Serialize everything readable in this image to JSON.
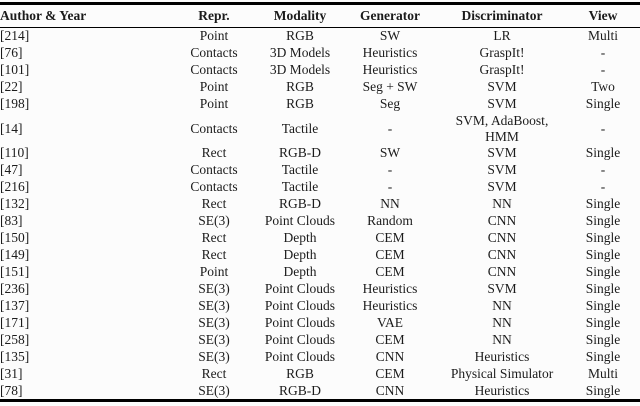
{
  "colors": {
    "background": "#fcfcfc",
    "text": "#1b1b1b",
    "rule": "#000000"
  },
  "table": {
    "columns": [
      {
        "key": "author",
        "label": "Author & Year",
        "align": "left"
      },
      {
        "key": "repr",
        "label": "Repr.",
        "align": "center"
      },
      {
        "key": "modality",
        "label": "Modality",
        "align": "center"
      },
      {
        "key": "generator",
        "label": "Generator",
        "align": "center"
      },
      {
        "key": "discriminator",
        "label": "Discriminator",
        "align": "center"
      },
      {
        "key": "view",
        "label": "View",
        "align": "center"
      }
    ],
    "rows": [
      {
        "author": "[214]",
        "repr": "Point",
        "modality": "RGB",
        "generator": "SW",
        "discriminator": "LR",
        "view": "Multi"
      },
      {
        "author": "[76]",
        "repr": "Contacts",
        "modality": "3D Models",
        "generator": "Heuristics",
        "discriminator": "GraspIt!",
        "view": "-"
      },
      {
        "author": "[101]",
        "repr": "Contacts",
        "modality": "3D Models",
        "generator": "Heuristics",
        "discriminator": "GraspIt!",
        "view": "-"
      },
      {
        "author": "[22]",
        "repr": "Point",
        "modality": "RGB",
        "generator": "Seg + SW",
        "discriminator": "SVM",
        "view": "Two"
      },
      {
        "author": "[198]",
        "repr": "Point",
        "modality": "RGB",
        "generator": "Seg",
        "discriminator": "SVM",
        "view": "Single"
      },
      {
        "author": "[14]",
        "repr": "Contacts",
        "modality": "Tactile",
        "generator": "-",
        "discriminator": "SVM, AdaBoost,\nHMM",
        "view": "-"
      },
      {
        "author": "[110]",
        "repr": "Rect",
        "modality": "RGB-D",
        "generator": "SW",
        "discriminator": "SVM",
        "view": "Single"
      },
      {
        "author": "[47]",
        "repr": "Contacts",
        "modality": "Tactile",
        "generator": "-",
        "discriminator": "SVM",
        "view": "-"
      },
      {
        "author": "[216]",
        "repr": "Contacts",
        "modality": "Tactile",
        "generator": "-",
        "discriminator": "SVM",
        "view": "-"
      },
      {
        "author": "[132]",
        "repr": "Rect",
        "modality": "RGB-D",
        "generator": "NN",
        "discriminator": "NN",
        "view": "Single"
      },
      {
        "author": "[83]",
        "repr": "SE(3)",
        "modality": "Point Clouds",
        "generator": "Random",
        "discriminator": "CNN",
        "view": "Single"
      },
      {
        "author": "[150]",
        "repr": "Rect",
        "modality": "Depth",
        "generator": "CEM",
        "discriminator": "CNN",
        "view": "Single"
      },
      {
        "author": "[149]",
        "repr": "Rect",
        "modality": "Depth",
        "generator": "CEM",
        "discriminator": "CNN",
        "view": "Single"
      },
      {
        "author": "[151]",
        "repr": "Point",
        "modality": "Depth",
        "generator": "CEM",
        "discriminator": "CNN",
        "view": "Single"
      },
      {
        "author": "[236]",
        "repr": "SE(3)",
        "modality": "Point Clouds",
        "generator": "Heuristics",
        "discriminator": "SVM",
        "view": "Single"
      },
      {
        "author": "[137]",
        "repr": "SE(3)",
        "modality": "Point Clouds",
        "generator": "Heuristics",
        "discriminator": "NN",
        "view": "Single"
      },
      {
        "author": "[171]",
        "repr": "SE(3)",
        "modality": "Point Clouds",
        "generator": "VAE",
        "discriminator": "NN",
        "view": "Single"
      },
      {
        "author": "[258]",
        "repr": "SE(3)",
        "modality": "Point Clouds",
        "generator": "CEM",
        "discriminator": "NN",
        "view": "Single"
      },
      {
        "author": "[135]",
        "repr": "SE(3)",
        "modality": "Point Clouds",
        "generator": "CNN",
        "discriminator": "Heuristics",
        "view": "Single"
      },
      {
        "author": "[31]",
        "repr": "Rect",
        "modality": "RGB",
        "generator": "CEM",
        "discriminator": "Physical Simulator",
        "view": "Multi"
      },
      {
        "author": "[78]",
        "repr": "SE(3)",
        "modality": "RGB-D",
        "generator": "CNN",
        "discriminator": "Heuristics",
        "view": "Single"
      }
    ]
  }
}
